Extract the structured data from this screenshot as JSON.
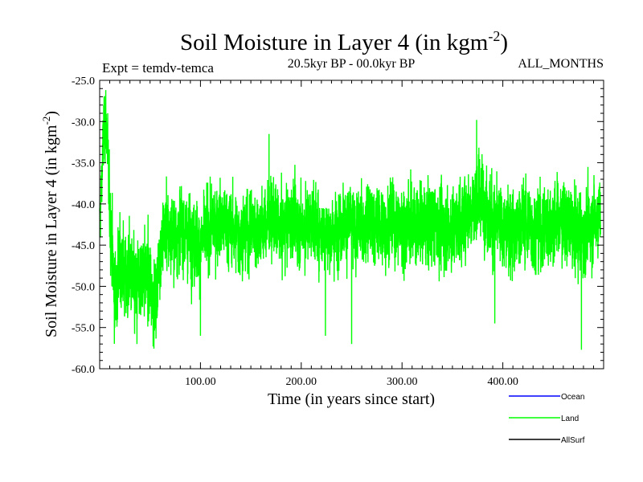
{
  "chart_data": {
    "type": "line",
    "title": "Soil Moisture in Layer 4 (in kgm",
    "title_sup": "-2",
    "title_close": ")",
    "subtitle_left": "Expt = temdv-temca",
    "subtitle_center": "20.5kyr BP - 00.0kyr BP",
    "subtitle_right": "ALL_MONTHS",
    "xlabel": "Time (in years since start)",
    "ylabel": "Soil Moisture in Layer 4 (in kgm",
    "ylabel_sup": "-2",
    "ylabel_close": ")",
    "xlim": [
      0,
      500
    ],
    "ylim": [
      -60,
      -25
    ],
    "x_ticks": [
      100,
      200,
      300,
      400
    ],
    "x_tick_labels": [
      "100.00",
      "200.00",
      "300.00",
      "400.00"
    ],
    "y_ticks": [
      -25,
      -30,
      -35,
      -40,
      -45,
      -50,
      -55,
      -60
    ],
    "y_tick_labels": [
      "-25.0",
      "-30.0",
      "-35.0",
      "-40.0",
      "-45.0",
      "-50.0",
      "-55.0",
      "-60.0"
    ],
    "series": [
      {
        "name": "Ocean",
        "color": "#0000ff",
        "values": []
      },
      {
        "name": "Land",
        "color": "#00ff00",
        "sampling": "monthly; x = month_index / 12 years",
        "anchors": [
          [
            0,
            -43
          ],
          [
            3,
            -34
          ],
          [
            5,
            -30
          ],
          [
            7,
            -31
          ],
          [
            9,
            -38
          ],
          [
            12,
            -45
          ],
          [
            15,
            -51
          ],
          [
            18,
            -49
          ],
          [
            22,
            -47
          ],
          [
            26,
            -50
          ],
          [
            30,
            -48
          ],
          [
            35,
            -51
          ],
          [
            40,
            -49
          ],
          [
            45,
            -48
          ],
          [
            50,
            -50
          ],
          [
            55,
            -52
          ],
          [
            60,
            -46
          ],
          [
            65,
            -43
          ],
          [
            70,
            -44
          ],
          [
            80,
            -43
          ],
          [
            90,
            -44
          ],
          [
            100,
            -45
          ],
          [
            110,
            -43
          ],
          [
            120,
            -42
          ],
          [
            130,
            -43
          ],
          [
            140,
            -44
          ],
          [
            150,
            -43
          ],
          [
            160,
            -43
          ],
          [
            170,
            -42
          ],
          [
            180,
            -43
          ],
          [
            190,
            -42
          ],
          [
            200,
            -43
          ],
          [
            210,
            -42
          ],
          [
            220,
            -43
          ],
          [
            230,
            -44
          ],
          [
            240,
            -42
          ],
          [
            250,
            -43
          ],
          [
            260,
            -43
          ],
          [
            270,
            -42
          ],
          [
            280,
            -43
          ],
          [
            290,
            -42
          ],
          [
            300,
            -43
          ],
          [
            310,
            -42
          ],
          [
            320,
            -43
          ],
          [
            330,
            -42
          ],
          [
            340,
            -43
          ],
          [
            350,
            -43
          ],
          [
            360,
            -42
          ],
          [
            370,
            -40
          ],
          [
            380,
            -39
          ],
          [
            390,
            -42
          ],
          [
            400,
            -43
          ],
          [
            410,
            -43
          ],
          [
            420,
            -42
          ],
          [
            430,
            -43
          ],
          [
            440,
            -43
          ],
          [
            450,
            -42
          ],
          [
            460,
            -42
          ],
          [
            470,
            -43
          ],
          [
            480,
            -44
          ],
          [
            490,
            -42
          ],
          [
            497,
            -41
          ]
        ],
        "amplitude": [
          [
            0,
            1.6
          ],
          [
            15,
            2.6
          ],
          [
            60,
            2.3
          ],
          [
            200,
            2.1
          ],
          [
            380,
            2.4
          ],
          [
            497,
            2.2
          ]
        ],
        "spikes": [
          [
            4,
            -28
          ],
          [
            8,
            -29
          ],
          [
            15,
            -55
          ],
          [
            37,
            -57
          ],
          [
            53,
            -57.3
          ],
          [
            100,
            -56
          ],
          [
            168,
            -31.5
          ],
          [
            224,
            -56
          ],
          [
            250,
            -57
          ],
          [
            374,
            -29.8
          ],
          [
            392,
            -54.5
          ],
          [
            478,
            -57.7
          ]
        ]
      },
      {
        "name": "AllSurf",
        "color": "#000000",
        "values": []
      }
    ],
    "legend": [
      {
        "label": "Ocean",
        "color": "#0000ff"
      },
      {
        "label": "Land",
        "color": "#00ff00"
      },
      {
        "label": "AllSurf",
        "color": "#000000"
      }
    ],
    "legend_position": "bottom-right",
    "grid": false
  }
}
